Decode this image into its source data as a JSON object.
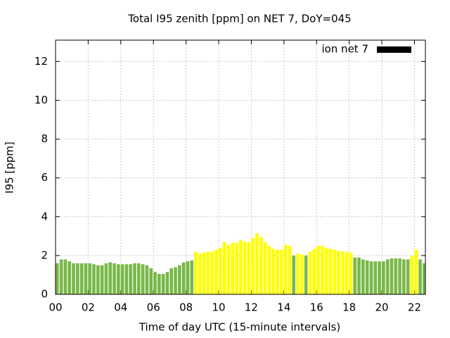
{
  "chart_data": {
    "type": "bar",
    "title": "Total I95 zenith [ppm] on NET 7, DoY=045",
    "x_label": "Time of day UTC (15-minute intervals)",
    "y_label": "I95 [ppm]",
    "x": [
      0,
      0.25,
      0.5,
      0.75,
      1,
      1.25,
      1.5,
      1.75,
      2,
      2.25,
      2.5,
      2.75,
      3,
      3.25,
      3.5,
      3.75,
      4,
      4.25,
      4.5,
      4.75,
      5,
      5.25,
      5.5,
      5.75,
      6,
      6.25,
      6.5,
      6.75,
      7,
      7.25,
      7.5,
      7.75,
      8,
      8.25,
      8.5,
      8.75,
      9,
      9.25,
      9.5,
      9.75,
      10,
      10.25,
      10.5,
      10.75,
      11,
      11.25,
      11.5,
      11.75,
      12,
      12.25,
      12.5,
      12.75,
      13,
      13.25,
      13.5,
      13.75,
      14,
      14.25,
      14.5,
      14.75,
      15,
      15.25,
      15.5,
      15.75,
      16,
      16.25,
      16.5,
      16.75,
      17,
      17.25,
      17.5,
      17.75,
      18,
      18.25,
      18.5,
      18.75,
      19,
      19.25,
      19.5,
      19.75,
      20,
      20.25,
      20.5,
      20.75,
      21,
      21.25,
      21.5,
      21.75,
      22,
      22.25,
      22.5
    ],
    "series": [
      {
        "name": "ion net 7",
        "color": "#000000",
        "values": [
          1.6,
          1.8,
          1.8,
          1.7,
          1.6,
          1.6,
          1.6,
          1.6,
          1.6,
          1.55,
          1.5,
          1.5,
          1.6,
          1.65,
          1.6,
          1.55,
          1.55,
          1.55,
          1.55,
          1.6,
          1.6,
          1.55,
          1.5,
          1.35,
          1.15,
          1.05,
          1.05,
          1.15,
          1.35,
          1.4,
          1.5,
          1.65,
          1.7,
          1.75,
          2.2,
          2.1,
          2.15,
          2.2,
          2.2,
          2.3,
          2.4,
          2.7,
          2.55,
          2.65,
          2.65,
          2.8,
          2.7,
          2.7,
          2.9,
          3.15,
          2.95,
          2.7,
          2.5,
          2.35,
          2.3,
          2.3,
          2.55,
          2.5,
          2.0,
          2.1,
          2.05,
          2.0,
          2.2,
          2.35,
          2.5,
          2.5,
          2.4,
          2.35,
          2.3,
          2.25,
          2.2,
          2.2,
          2.15,
          1.9,
          1.9,
          1.8,
          1.75,
          1.7,
          1.7,
          1.7,
          1.7,
          1.8,
          1.85,
          1.85,
          1.85,
          1.8,
          1.8,
          2.0,
          2.3,
          1.8,
          1.6
        ]
      }
    ],
    "bar_colors": [
      "#78b848",
      "#78b848",
      "#78b848",
      "#78b848",
      "#78b848",
      "#78b848",
      "#78b848",
      "#78b848",
      "#78b848",
      "#78b848",
      "#78b848",
      "#78b848",
      "#78b848",
      "#78b848",
      "#78b848",
      "#78b848",
      "#78b848",
      "#78b848",
      "#78b848",
      "#78b848",
      "#78b848",
      "#78b848",
      "#78b848",
      "#78b848",
      "#78b848",
      "#78b848",
      "#78b848",
      "#78b848",
      "#78b848",
      "#78b848",
      "#78b848",
      "#78b848",
      "#78b848",
      "#78b848",
      "#ffff00",
      "#ffff00",
      "#ffff00",
      "#ffff00",
      "#ffff00",
      "#ffff00",
      "#ffff00",
      "#ffff00",
      "#ffff00",
      "#ffff00",
      "#ffff00",
      "#ffff00",
      "#ffff00",
      "#ffff00",
      "#ffff00",
      "#ffff00",
      "#ffff00",
      "#ffff00",
      "#ffff00",
      "#ffff00",
      "#ffff00",
      "#ffff00",
      "#ffff00",
      "#ffff00",
      "#78b848",
      "#ffff00",
      "#ffff00",
      "#78b848",
      "#ffff00",
      "#ffff00",
      "#ffff00",
      "#ffff00",
      "#ffff00",
      "#ffff00",
      "#ffff00",
      "#ffff00",
      "#ffff00",
      "#ffff00",
      "#ffff00",
      "#78b848",
      "#78b848",
      "#78b848",
      "#78b848",
      "#78b848",
      "#78b848",
      "#78b848",
      "#78b848",
      "#78b848",
      "#78b848",
      "#78b848",
      "#78b848",
      "#78b848",
      "#78b848",
      "#ffff00",
      "#ffff00",
      "#78b848",
      "#78b848"
    ],
    "bar_width": 0.2,
    "xlim": [
      0,
      22.67
    ],
    "ylim": [
      0,
      13.1
    ],
    "xticks": [
      {
        "value": 0,
        "label": "00"
      },
      {
        "value": 2,
        "label": "02"
      },
      {
        "value": 4,
        "label": "04"
      },
      {
        "value": 6,
        "label": "06"
      },
      {
        "value": 8,
        "label": "08"
      },
      {
        "value": 10,
        "label": "10"
      },
      {
        "value": 12,
        "label": "12"
      },
      {
        "value": 14,
        "label": "14"
      },
      {
        "value": 16,
        "label": "16"
      },
      {
        "value": 18,
        "label": "18"
      },
      {
        "value": 20,
        "label": "20"
      },
      {
        "value": 22,
        "label": "22"
      }
    ],
    "yticks": [
      0,
      2,
      4,
      6,
      8,
      10,
      12
    ],
    "grid": true,
    "legend": "top-right"
  }
}
